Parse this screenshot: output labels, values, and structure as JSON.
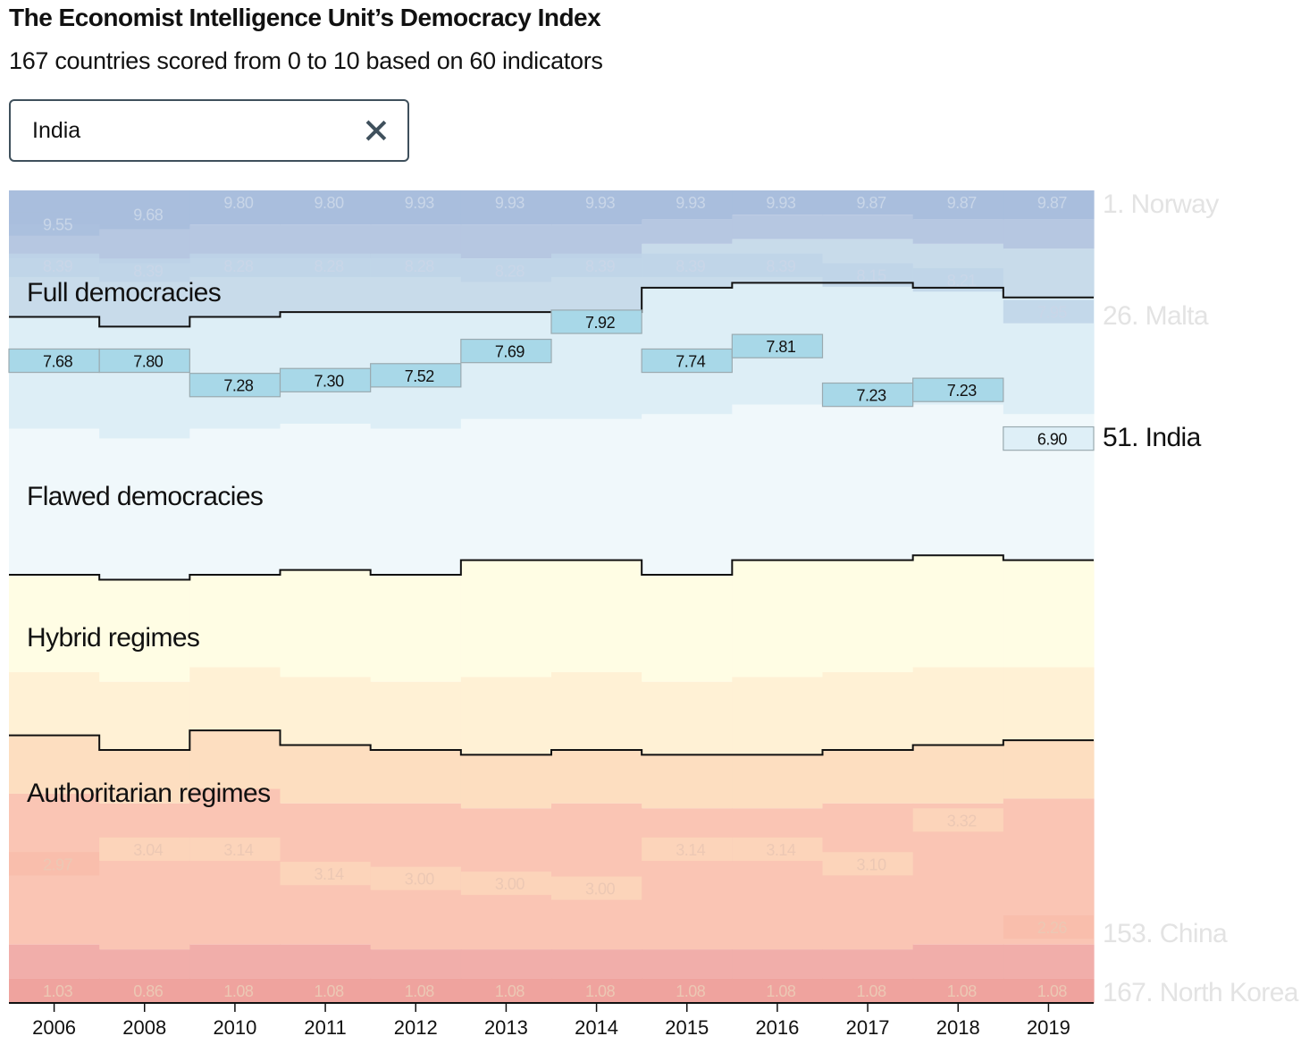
{
  "header": {
    "title": "The Economist Intelligence Unit’s Democracy Index",
    "subtitle": "167 countries scored from 0 to 10 based on 60 indicators"
  },
  "search": {
    "value": "India",
    "clear_icon": "close-icon"
  },
  "chart_data": {
    "type": "area",
    "title": "The Economist Intelligence Unit’s Democracy Index",
    "subtitle": "167 countries scored from 0 to 10 based on 60 indicators",
    "total_countries": 167,
    "years": [
      "2006",
      "2008",
      "2010",
      "2011",
      "2012",
      "2013",
      "2014",
      "2015",
      "2016",
      "2017",
      "2018",
      "2019"
    ],
    "categories": [
      {
        "name": "Full democracies",
        "color": "#c8dbea"
      },
      {
        "name": "Flawed democracies",
        "color": "#eef7fb"
      },
      {
        "name": "Hybrid regimes",
        "color": "#fffde4"
      },
      {
        "name": "Authoritarian regimes",
        "color": "#fde0c2"
      }
    ],
    "category_boundaries": {
      "full_count": [
        26,
        28,
        26,
        25,
        25,
        25,
        25,
        20,
        19,
        19,
        20,
        22
      ],
      "full_plus_flawed_count": [
        79,
        80,
        79,
        78,
        79,
        76,
        76,
        79,
        76,
        76,
        75,
        76
      ],
      "full_flawed_hybrid_count": [
        112,
        115,
        111,
        114,
        115,
        116,
        115,
        116,
        116,
        115,
        114,
        113
      ]
    },
    "highlighted_country": {
      "name": "India",
      "label": "51. India",
      "scores": [
        7.68,
        7.8,
        7.28,
        7.3,
        7.52,
        7.69,
        7.92,
        7.74,
        7.81,
        7.23,
        7.23,
        6.9
      ],
      "ranks": [
        35,
        35,
        40,
        39,
        38,
        33,
        27,
        35,
        32,
        42,
        41,
        51
      ],
      "color": "#a8d8e8"
    },
    "reference_countries": [
      {
        "name": "Norway",
        "label": "1. Norway",
        "scores": [
          9.55,
          9.68,
          9.8,
          9.8,
          9.93,
          9.93,
          9.93,
          9.93,
          9.93,
          9.87,
          9.87,
          9.87
        ]
      },
      {
        "name": "Malta",
        "label": "26. Malta",
        "scores": [
          8.39,
          8.39,
          8.28,
          8.28,
          8.28,
          8.28,
          8.39,
          8.39,
          8.39,
          8.15,
          8.21,
          7.95
        ]
      },
      {
        "name": "China",
        "label": "153. China",
        "scores": [
          2.97,
          3.04,
          3.14,
          3.14,
          3.0,
          3.0,
          3.0,
          3.14,
          3.14,
          3.1,
          3.32,
          2.26
        ]
      },
      {
        "name": "North Korea",
        "label": "167. North Korea",
        "scores": [
          1.03,
          0.86,
          1.08,
          1.08,
          1.08,
          1.08,
          1.08,
          1.08,
          1.08,
          1.08,
          1.08,
          1.08
        ]
      }
    ],
    "xlabel": "",
    "ylabel": "",
    "grid": false,
    "colors": {
      "full_top": "#a9bedd",
      "full_mid": "#b6c7e1",
      "full_low": "#c8dbea",
      "flawed_top": "#ddeef6",
      "flawed_low": "#f0f8fb",
      "hybrid_top": "#fffde4",
      "hybrid_low": "#fff1d5",
      "auth_top": "#fddec0",
      "auth_mid": "#fac5b4",
      "auth_low": "#f1aeaa",
      "auth_bottom": "#eea39e",
      "india_band": "#a8d8e8",
      "faded_label": "#e3e3e3",
      "boundary_line": "#111111"
    }
  }
}
